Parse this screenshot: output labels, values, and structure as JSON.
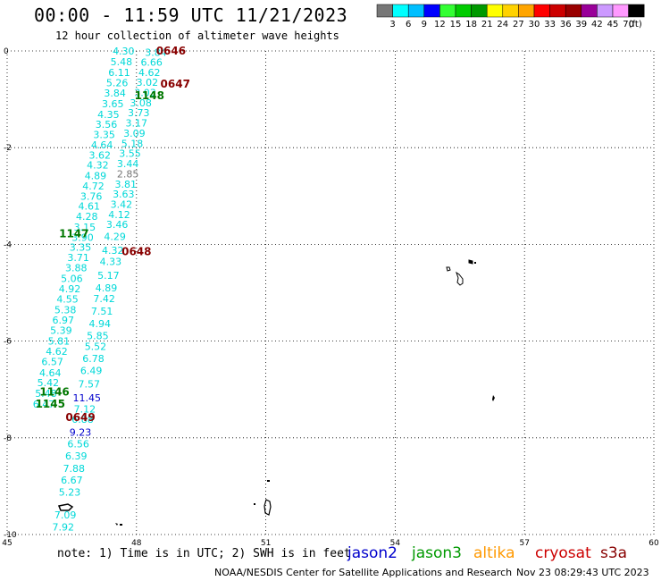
{
  "chart_data": {
    "type": "scatter",
    "title": "00:00 - 11:59 UTC 11/21/2023",
    "subtitle": "12 hour collection of altimeter wave heights",
    "xlim": [
      45,
      60
    ],
    "ylim": [
      -10,
      0
    ],
    "x_ticks": [
      "45",
      "48",
      "51",
      "54",
      "57",
      "60"
    ],
    "y_ticks": [
      "0",
      "-2",
      "-4",
      "-6",
      "-8",
      "-10"
    ],
    "grid": true,
    "color_scale": {
      "labels": [
        "3",
        "6",
        "9",
        "12",
        "15",
        "18",
        "21",
        "24",
        "27",
        "30",
        "33",
        "36",
        "39",
        "42",
        "45",
        "70"
      ],
      "unit": "(ft)",
      "colors": [
        "#777777",
        "#00ffff",
        "#00bfff",
        "#0000ff",
        "#33ff33",
        "#00cc00",
        "#009900",
        "#ffff00",
        "#ffd200",
        "#ffa500",
        "#ff0000",
        "#cc0000",
        "#990000",
        "#990099",
        "#cc99ff",
        "#ff99ff",
        "#000000"
      ]
    },
    "series": [
      {
        "name": "",
        "color": "#00d8d8",
        "points": [
          {
            "x": 48.45,
            "y": -0.03,
            "v": "3.84"
          },
          {
            "x": 48.35,
            "y": -0.23,
            "v": "6.66"
          },
          {
            "x": 48.3,
            "y": -0.44,
            "v": "4.62"
          },
          {
            "x": 48.25,
            "y": -0.65,
            "v": "3.02"
          },
          {
            "x": 48.2,
            "y": -0.86,
            "v": "3.03"
          },
          {
            "x": 48.1,
            "y": -1.07,
            "v": "3.08"
          },
          {
            "x": 48.05,
            "y": -1.28,
            "v": "3.73"
          },
          {
            "x": 48.0,
            "y": -1.49,
            "v": "3.17"
          },
          {
            "x": 47.95,
            "y": -1.7,
            "v": "3.09"
          },
          {
            "x": 47.9,
            "y": -1.91,
            "v": "5.18"
          },
          {
            "x": 47.85,
            "y": -2.12,
            "v": "3.55"
          },
          {
            "x": 47.8,
            "y": -2.33,
            "v": "3.44"
          },
          {
            "x": 47.75,
            "y": -2.75,
            "v": "3.81"
          },
          {
            "x": 47.7,
            "y": -2.96,
            "v": "3.63"
          },
          {
            "x": 47.65,
            "y": -3.17,
            "v": "3.42"
          },
          {
            "x": 47.6,
            "y": -3.38,
            "v": "4.12"
          },
          {
            "x": 47.55,
            "y": -3.59,
            "v": "3.46"
          },
          {
            "x": 47.5,
            "y": -3.84,
            "v": "4.29"
          },
          {
            "x": 47.45,
            "y": -4.12,
            "v": "4.32"
          },
          {
            "x": 47.4,
            "y": -4.35,
            "v": "4.33"
          },
          {
            "x": 47.35,
            "y": -4.64,
            "v": "5.17"
          },
          {
            "x": 47.3,
            "y": -4.9,
            "v": "4.89"
          },
          {
            "x": 47.25,
            "y": -5.12,
            "v": "7.42"
          },
          {
            "x": 47.2,
            "y": -5.38,
            "v": "7.51"
          },
          {
            "x": 47.15,
            "y": -5.64,
            "v": "4.94"
          },
          {
            "x": 47.1,
            "y": -5.89,
            "v": "5.85"
          },
          {
            "x": 47.05,
            "y": -6.11,
            "v": "5.52"
          },
          {
            "x": 47.0,
            "y": -6.36,
            "v": "6.78"
          },
          {
            "x": 46.95,
            "y": -6.61,
            "v": "6.49"
          },
          {
            "x": 46.9,
            "y": -6.89,
            "v": "7.57"
          },
          {
            "x": 46.8,
            "y": -7.4,
            "v": "7.12"
          },
          {
            "x": 46.75,
            "y": -7.62,
            "v": "6.88"
          },
          {
            "x": 46.65,
            "y": -8.12,
            "v": "6.56"
          },
          {
            "x": 46.6,
            "y": -8.37,
            "v": "6.39"
          },
          {
            "x": 46.55,
            "y": -8.63,
            "v": "7.88"
          },
          {
            "x": 46.5,
            "y": -8.87,
            "v": "6.67"
          },
          {
            "x": 46.45,
            "y": -9.12,
            "v": "5.23"
          },
          {
            "x": 46.35,
            "y": -9.59,
            "v": "7.09"
          },
          {
            "x": 46.3,
            "y": -9.84,
            "v": "7.92"
          },
          {
            "x": 47.7,
            "y": 0.0,
            "v": "4.30"
          },
          {
            "x": 47.65,
            "y": -0.22,
            "v": "5.48"
          },
          {
            "x": 47.6,
            "y": -0.44,
            "v": "6.11"
          },
          {
            "x": 47.55,
            "y": -0.66,
            "v": "5.26"
          },
          {
            "x": 47.5,
            "y": -0.87,
            "v": "3.84"
          },
          {
            "x": 47.45,
            "y": -1.09,
            "v": "3.65"
          },
          {
            "x": 47.35,
            "y": -1.31,
            "v": "4.35"
          },
          {
            "x": 47.3,
            "y": -1.52,
            "v": "3.56"
          },
          {
            "x": 47.25,
            "y": -1.73,
            "v": "3.35"
          },
          {
            "x": 47.2,
            "y": -1.94,
            "v": "4.64"
          },
          {
            "x": 47.15,
            "y": -2.15,
            "v": "3.62"
          },
          {
            "x": 47.1,
            "y": -2.36,
            "v": "4.32"
          },
          {
            "x": 47.05,
            "y": -2.58,
            "v": "4.89"
          },
          {
            "x": 47.0,
            "y": -2.79,
            "v": "4.72"
          },
          {
            "x": 46.95,
            "y": -3.0,
            "v": "3.76"
          },
          {
            "x": 46.9,
            "y": -3.21,
            "v": "4.61"
          },
          {
            "x": 46.85,
            "y": -3.42,
            "v": "4.28"
          },
          {
            "x": 46.8,
            "y": -3.64,
            "v": "3.15"
          },
          {
            "x": 46.75,
            "y": -3.85,
            "v": "3.90"
          },
          {
            "x": 46.7,
            "y": -4.06,
            "v": "3.35"
          },
          {
            "x": 46.65,
            "y": -4.27,
            "v": "3.71"
          },
          {
            "x": 46.6,
            "y": -4.48,
            "v": "3.88"
          },
          {
            "x": 46.5,
            "y": -4.7,
            "v": "5.06"
          },
          {
            "x": 46.45,
            "y": -4.92,
            "v": "4.92"
          },
          {
            "x": 46.4,
            "y": -5.13,
            "v": "4.55"
          },
          {
            "x": 46.35,
            "y": -5.35,
            "v": "5.38"
          },
          {
            "x": 46.3,
            "y": -5.56,
            "v": "6.97"
          },
          {
            "x": 46.25,
            "y": -5.78,
            "v": "5.39"
          },
          {
            "x": 46.2,
            "y": -6.0,
            "v": "5.81"
          },
          {
            "x": 46.15,
            "y": -6.21,
            "v": "4.62"
          },
          {
            "x": 46.05,
            "y": -6.42,
            "v": "6.57"
          },
          {
            "x": 46.0,
            "y": -6.65,
            "v": "4.64"
          },
          {
            "x": 45.95,
            "y": -6.86,
            "v": "5.42"
          },
          {
            "x": 45.9,
            "y": -7.08,
            "v": "5.48"
          },
          {
            "x": 45.85,
            "y": -7.3,
            "v": "6.47"
          }
        ]
      },
      {
        "name": "",
        "color": "#777777",
        "points": [
          {
            "x": 47.8,
            "y": -2.54,
            "v": "2.85"
          }
        ]
      },
      {
        "name": "",
        "color": "#0000cc",
        "points": [
          {
            "x": 46.85,
            "y": -7.17,
            "v": "11.45"
          },
          {
            "x": 46.7,
            "y": -7.88,
            "v": "9.23"
          }
        ]
      }
    ],
    "time_labels": [
      {
        "x": 48.8,
        "y": 0.0,
        "text": "0646",
        "color": "#880000"
      },
      {
        "x": 48.9,
        "y": -0.68,
        "text": "0647",
        "color": "#880000"
      },
      {
        "x": 48.3,
        "y": -0.92,
        "text": "1148",
        "color": "#007700"
      },
      {
        "x": 46.55,
        "y": -3.78,
        "text": "1147",
        "color": "#007700"
      },
      {
        "x": 48.0,
        "y": -4.15,
        "text": "0648",
        "color": "#880000"
      },
      {
        "x": 46.1,
        "y": -7.05,
        "text": "1146",
        "color": "#007700"
      },
      {
        "x": 46.0,
        "y": -7.3,
        "text": "1145",
        "color": "#007700"
      },
      {
        "x": 46.7,
        "y": -7.58,
        "text": "0649",
        "color": "#880000"
      }
    ]
  },
  "footnote": "note: 1) Time is in UTC; 2) SWH is in feet",
  "legend": [
    {
      "name": "jason2",
      "color": "#0000cc"
    },
    {
      "name": "jason3",
      "color": "#009900"
    },
    {
      "name": "altika",
      "color": "#ff9900"
    },
    {
      "name": "cryosat",
      "color": "#cc0000"
    },
    {
      "name": "s3a",
      "color": "#880000"
    }
  ],
  "credit": "NOAA/NESDIS Center for Satellite Applications and Research",
  "timestamp": "Nov 23 08:29:43 UTC 2023"
}
